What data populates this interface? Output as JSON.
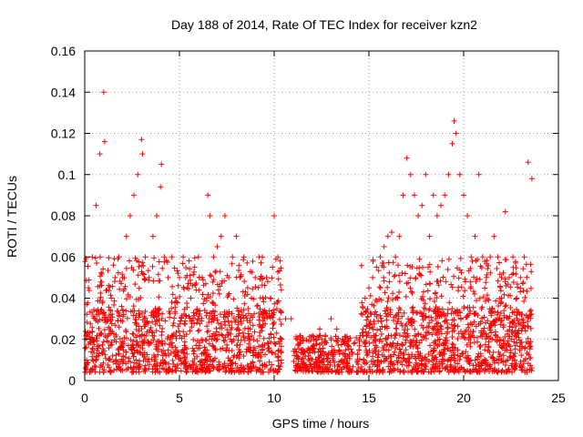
{
  "chart_data": {
    "type": "scatter",
    "title": "Day 188 of 2014, Rate Of TEC Index for receiver kzn2",
    "xlabel": "GPS time / hours",
    "ylabel": "ROTI / TECUs",
    "xlim": [
      0,
      25
    ],
    "ylim": [
      0,
      0.16
    ],
    "xticks": [
      0,
      5,
      10,
      15,
      20,
      25
    ],
    "xtick_labels": [
      "0",
      "5",
      "10",
      "15",
      "20",
      "25"
    ],
    "yticks": [
      0,
      0.02,
      0.04,
      0.06,
      0.08,
      0.1,
      0.12,
      0.14,
      0.16
    ],
    "ytick_labels": [
      "0",
      "0.02",
      "0.04",
      "0.06",
      "0.08",
      "0.1",
      "0.12",
      "0.14",
      "0.16"
    ],
    "grid": true,
    "marker": "+",
    "marker_color": "#ff0000",
    "series": [
      {
        "name": "ROTI",
        "color": "#ff0000",
        "x": [
          0.0,
          0.2,
          0.4,
          0.6,
          0.8,
          1.0,
          1.05,
          1.2,
          1.4,
          1.6,
          1.8,
          2.0,
          2.2,
          2.4,
          2.6,
          2.8,
          3.0,
          3.05,
          3.2,
          3.4,
          3.6,
          3.8,
          4.0,
          4.05,
          4.2,
          4.4,
          4.6,
          4.8,
          5.0,
          5.2,
          5.4,
          5.6,
          5.8,
          6.0,
          6.2,
          6.5,
          6.6,
          6.8,
          7.0,
          7.2,
          7.4,
          7.6,
          7.8,
          8.0,
          8.2,
          8.4,
          8.6,
          8.8,
          9.0,
          9.2,
          9.4,
          9.6,
          9.8,
          10.0,
          10.2,
          10.4,
          10.6,
          10.9,
          11.2,
          11.5,
          11.8,
          12.1,
          12.4,
          12.7,
          13.0,
          13.3,
          13.6,
          13.9,
          14.2,
          14.5,
          14.8,
          15.0,
          15.2,
          15.4,
          15.6,
          15.8,
          16.0,
          16.2,
          16.4,
          16.6,
          16.8,
          17.0,
          17.2,
          17.4,
          17.6,
          17.8,
          18.0,
          18.2,
          18.4,
          18.6,
          18.8,
          19.0,
          19.2,
          19.4,
          19.5,
          19.6,
          19.8,
          20.0,
          20.2,
          20.4,
          20.6,
          20.8,
          21.0,
          21.2,
          21.4,
          21.6,
          21.8,
          22.0,
          22.2,
          22.4,
          22.6,
          22.8,
          23.0,
          23.2,
          23.4,
          23.6
        ],
        "y": [
          0.02,
          0.045,
          0.06,
          0.085,
          0.11,
          0.14,
          0.116,
          0.03,
          0.04,
          0.05,
          0.06,
          0.05,
          0.07,
          0.08,
          0.09,
          0.1,
          0.117,
          0.11,
          0.06,
          0.05,
          0.07,
          0.08,
          0.094,
          0.105,
          0.06,
          0.05,
          0.06,
          0.04,
          0.05,
          0.06,
          0.045,
          0.04,
          0.055,
          0.06,
          0.05,
          0.09,
          0.08,
          0.06,
          0.065,
          0.07,
          0.08,
          0.05,
          0.06,
          0.07,
          0.05,
          0.06,
          0.045,
          0.04,
          0.05,
          0.06,
          0.04,
          0.05,
          0.04,
          0.08,
          0.06,
          0.02,
          0.03,
          0.03,
          0.012,
          0.015,
          0.012,
          0.02,
          0.025,
          0.022,
          0.03,
          0.025,
          0.02,
          0.02,
          0.018,
          0.02,
          0.04,
          0.045,
          0.05,
          0.055,
          0.06,
          0.065,
          0.07,
          0.072,
          0.06,
          0.07,
          0.09,
          0.108,
          0.1,
          0.09,
          0.08,
          0.085,
          0.1,
          0.07,
          0.09,
          0.08,
          0.085,
          0.09,
          0.1,
          0.115,
          0.126,
          0.12,
          0.1,
          0.09,
          0.08,
          0.06,
          0.07,
          0.1,
          0.06,
          0.05,
          0.06,
          0.07,
          0.06,
          0.05,
          0.082,
          0.05,
          0.06,
          0.04,
          0.05,
          0.06,
          0.106,
          0.098
        ],
        "baseline_band": {
          "x_from": 0,
          "x_to": 23.6,
          "y_low": 0.004,
          "y_high": 0.035,
          "gap_x": [
            10.4,
            11.0
          ]
        }
      }
    ]
  }
}
